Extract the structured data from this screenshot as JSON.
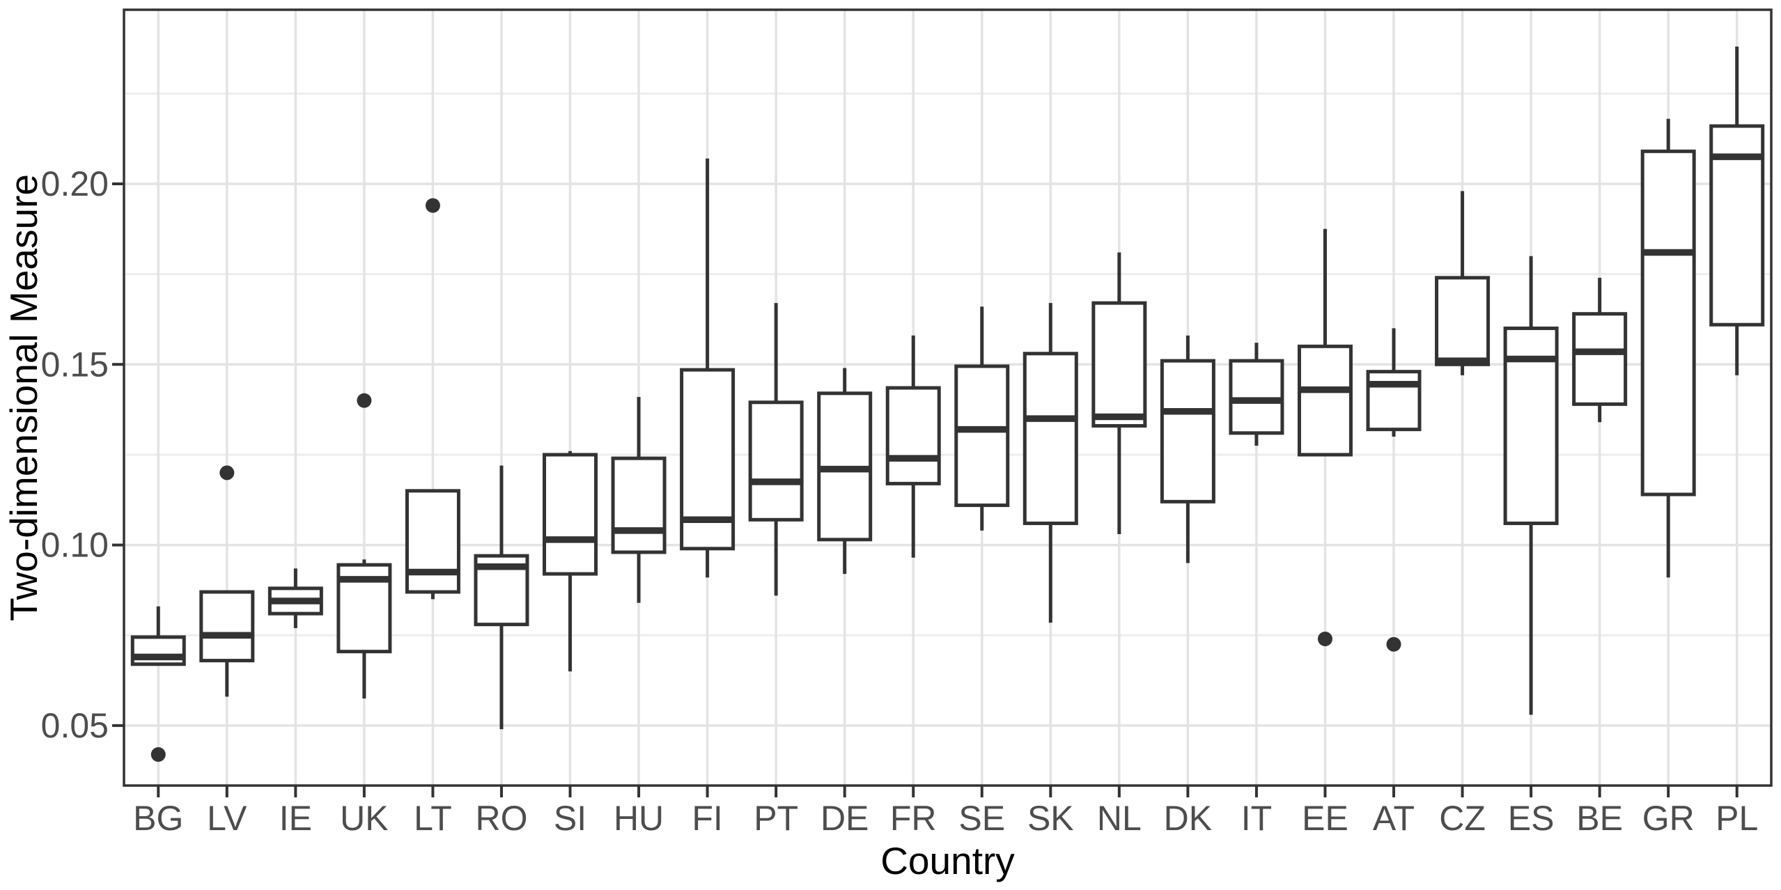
{
  "figure": {
    "x_axis_title": "Country",
    "y_axis_title": "Two-dimensional Measure"
  },
  "colors": {
    "background": "#ffffff",
    "panel_background": "#ffffff",
    "panel_border": "#333333",
    "grid_major": "#e3e3e3",
    "grid_minor": "#ededed",
    "box_stroke": "#333333",
    "box_fill": "#ffffff",
    "median_stroke": "#333333",
    "outlier_fill": "#333333",
    "tick_stroke": "#333333",
    "tick_label_color": "#4d4d4d",
    "axis_title_color": "#000000"
  },
  "chart_data": {
    "type": "boxplot",
    "title": "",
    "xlabel": "Country",
    "ylabel": "Two-dimensional Measure",
    "ylim": [
      0.0334,
      0.2482
    ],
    "yticks": [
      0.05,
      0.1,
      0.15,
      0.2
    ],
    "ytick_labels": [
      "0.05",
      "0.10",
      "0.15",
      "0.20"
    ],
    "minor_gridlines": [
      0.075,
      0.125,
      0.175,
      0.225
    ],
    "grid": true,
    "legend": false,
    "categories": [
      "BG",
      "LV",
      "IE",
      "UK",
      "LT",
      "RO",
      "SI",
      "HU",
      "FI",
      "PT",
      "DE",
      "FR",
      "SE",
      "SK",
      "NL",
      "DK",
      "IT",
      "EE",
      "AT",
      "CZ",
      "ES",
      "BE",
      "GR",
      "PL"
    ],
    "boxes": [
      {
        "country": "BG",
        "whisker_low": 0.067,
        "q1": 0.067,
        "median": 0.069,
        "q3": 0.0745,
        "whisker_high": 0.083,
        "outliers": [
          0.042
        ]
      },
      {
        "country": "LV",
        "whisker_low": 0.058,
        "q1": 0.068,
        "median": 0.075,
        "q3": 0.087,
        "whisker_high": 0.087,
        "outliers": [
          0.12
        ]
      },
      {
        "country": "IE",
        "whisker_low": 0.077,
        "q1": 0.081,
        "median": 0.0845,
        "q3": 0.088,
        "whisker_high": 0.0935,
        "outliers": []
      },
      {
        "country": "UK",
        "whisker_low": 0.0575,
        "q1": 0.0705,
        "median": 0.0905,
        "q3": 0.0945,
        "whisker_high": 0.096,
        "outliers": [
          0.14
        ]
      },
      {
        "country": "LT",
        "whisker_low": 0.085,
        "q1": 0.087,
        "median": 0.0925,
        "q3": 0.115,
        "whisker_high": 0.115,
        "outliers": [
          0.194
        ]
      },
      {
        "country": "RO",
        "whisker_low": 0.049,
        "q1": 0.078,
        "median": 0.094,
        "q3": 0.097,
        "whisker_high": 0.122,
        "outliers": []
      },
      {
        "country": "SI",
        "whisker_low": 0.065,
        "q1": 0.092,
        "median": 0.1015,
        "q3": 0.125,
        "whisker_high": 0.126,
        "outliers": []
      },
      {
        "country": "HU",
        "whisker_low": 0.084,
        "q1": 0.098,
        "median": 0.104,
        "q3": 0.124,
        "whisker_high": 0.141,
        "outliers": []
      },
      {
        "country": "FI",
        "whisker_low": 0.091,
        "q1": 0.099,
        "median": 0.107,
        "q3": 0.1485,
        "whisker_high": 0.207,
        "outliers": []
      },
      {
        "country": "PT",
        "whisker_low": 0.086,
        "q1": 0.107,
        "median": 0.1175,
        "q3": 0.1395,
        "whisker_high": 0.167,
        "outliers": []
      },
      {
        "country": "DE",
        "whisker_low": 0.092,
        "q1": 0.1015,
        "median": 0.121,
        "q3": 0.142,
        "whisker_high": 0.149,
        "outliers": []
      },
      {
        "country": "FR",
        "whisker_low": 0.0965,
        "q1": 0.117,
        "median": 0.124,
        "q3": 0.1435,
        "whisker_high": 0.158,
        "outliers": []
      },
      {
        "country": "SE",
        "whisker_low": 0.104,
        "q1": 0.111,
        "median": 0.132,
        "q3": 0.1495,
        "whisker_high": 0.166,
        "outliers": []
      },
      {
        "country": "SK",
        "whisker_low": 0.0785,
        "q1": 0.106,
        "median": 0.135,
        "q3": 0.153,
        "whisker_high": 0.167,
        "outliers": []
      },
      {
        "country": "NL",
        "whisker_low": 0.103,
        "q1": 0.133,
        "median": 0.1355,
        "q3": 0.167,
        "whisker_high": 0.181,
        "outliers": []
      },
      {
        "country": "DK",
        "whisker_low": 0.095,
        "q1": 0.112,
        "median": 0.137,
        "q3": 0.151,
        "whisker_high": 0.158,
        "outliers": []
      },
      {
        "country": "IT",
        "whisker_low": 0.1275,
        "q1": 0.131,
        "median": 0.14,
        "q3": 0.151,
        "whisker_high": 0.156,
        "outliers": []
      },
      {
        "country": "EE",
        "whisker_low": 0.125,
        "q1": 0.125,
        "median": 0.143,
        "q3": 0.155,
        "whisker_high": 0.1875,
        "outliers": [
          0.074
        ]
      },
      {
        "country": "AT",
        "whisker_low": 0.13,
        "q1": 0.132,
        "median": 0.1445,
        "q3": 0.148,
        "whisker_high": 0.16,
        "outliers": [
          0.0725
        ]
      },
      {
        "country": "CZ",
        "whisker_low": 0.147,
        "q1": 0.15,
        "median": 0.151,
        "q3": 0.174,
        "whisker_high": 0.198,
        "outliers": []
      },
      {
        "country": "ES",
        "whisker_low": 0.053,
        "q1": 0.106,
        "median": 0.1515,
        "q3": 0.16,
        "whisker_high": 0.18,
        "outliers": []
      },
      {
        "country": "BE",
        "whisker_low": 0.134,
        "q1": 0.139,
        "median": 0.1535,
        "q3": 0.164,
        "whisker_high": 0.174,
        "outliers": []
      },
      {
        "country": "GR",
        "whisker_low": 0.091,
        "q1": 0.114,
        "median": 0.181,
        "q3": 0.209,
        "whisker_high": 0.218,
        "outliers": []
      },
      {
        "country": "PL",
        "whisker_low": 0.147,
        "q1": 0.161,
        "median": 0.2075,
        "q3": 0.216,
        "whisker_high": 0.238,
        "outliers": []
      }
    ]
  }
}
